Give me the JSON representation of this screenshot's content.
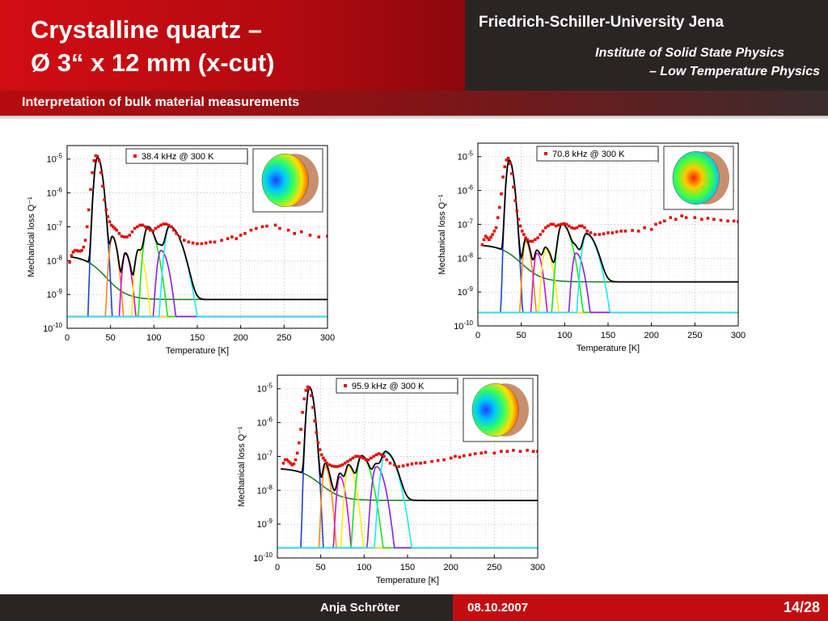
{
  "header": {
    "title_line1": "Crystalline quartz –",
    "title_line2": "Ø 3“ x 12 mm (x-cut)",
    "university": "Friedrich-Schiller-University Jena",
    "institute_line1": "Institute of Solid State Physics",
    "institute_line2": "– Low Temperature Physics"
  },
  "subtitle": "Interpretation of bulk material measurements",
  "footer": {
    "author": "Anja Schröter",
    "date": "08.10.2007",
    "page": "14/28"
  },
  "colors": {
    "measured": "#e01010",
    "fit": "#000000",
    "background": "#1a7a1a",
    "peaks": [
      "#1f3fd6",
      "#ff8a10",
      "#d010d0",
      "#ffee10",
      "#20e020",
      "#8a20e0",
      "#20e8f0"
    ],
    "baseline": "#ff30ff"
  },
  "chart_data": [
    {
      "type": "scatter",
      "legend": "38.4 kHz @ 300 K",
      "xlabel": "Temperature [K]",
      "ylabel": "Mechanical loss Q⁻¹",
      "xlim": [
        0,
        300
      ],
      "ylim_log10": [
        -10,
        -4.6
      ],
      "xticks": [
        0,
        50,
        100,
        150,
        200,
        250,
        300
      ],
      "yticks": [
        -10,
        -9,
        -8,
        -7,
        -6,
        -5
      ],
      "ytick_labels": [
        "10-10",
        "10-9",
        "10-8",
        "10-7",
        "10-6",
        "10-5"
      ],
      "grid": true,
      "legend_position": "top",
      "measured": {
        "x": [
          3,
          5,
          7,
          9,
          11,
          13,
          15,
          17,
          19,
          21,
          23,
          25,
          27,
          29,
          31,
          33,
          35,
          37,
          39,
          41,
          43,
          45,
          47,
          49,
          51,
          53,
          55,
          57,
          60,
          63,
          66,
          69,
          72,
          75,
          78,
          81,
          84,
          87,
          90,
          93,
          96,
          99,
          102,
          105,
          108,
          111,
          114,
          117,
          120,
          123,
          126,
          130,
          135,
          140,
          145,
          150,
          155,
          160,
          165,
          170,
          178,
          185,
          190,
          195,
          200,
          205,
          212,
          218,
          225,
          230,
          240,
          245,
          255,
          262,
          270,
          280,
          290,
          300
        ],
        "y": [
          -8.05,
          -7.85,
          -7.75,
          -7.7,
          -7.7,
          -7.72,
          -7.72,
          -7.7,
          -7.6,
          -7.4,
          -7.0,
          -6.5,
          -5.9,
          -5.4,
          -5.05,
          -4.9,
          -4.92,
          -5.05,
          -5.4,
          -5.8,
          -6.2,
          -6.5,
          -6.7,
          -6.85,
          -6.95,
          -7.0,
          -7.05,
          -7.1,
          -7.2,
          -7.28,
          -7.3,
          -7.3,
          -7.25,
          -7.15,
          -7.05,
          -7.0,
          -6.95,
          -6.95,
          -7.0,
          -7.05,
          -7.1,
          -7.12,
          -7.05,
          -7.0,
          -6.95,
          -6.92,
          -6.92,
          -6.95,
          -7.0,
          -7.1,
          -7.2,
          -7.3,
          -7.4,
          -7.45,
          -7.48,
          -7.5,
          -7.5,
          -7.48,
          -7.45,
          -7.45,
          -7.4,
          -7.35,
          -7.3,
          -7.35,
          -7.25,
          -7.2,
          -7.1,
          -7.05,
          -7.0,
          -6.98,
          -6.95,
          -7.05,
          -7.1,
          -7.2,
          -7.15,
          -7.25,
          -7.3,
          -7.28
        ]
      },
      "background": {
        "amp": -7.85,
        "x0": 20,
        "drop": 1.3
      },
      "peaks": [
        {
          "center": 35,
          "amp": -4.95,
          "wl": 9,
          "wr": 14
        },
        {
          "center": 52,
          "amp": -7.3,
          "wl": 9,
          "wr": 15
        },
        {
          "center": 67,
          "amp": -7.8,
          "wl": 9,
          "wr": 16
        },
        {
          "center": 82,
          "amp": -7.7,
          "wl": 10,
          "wr": 18
        },
        {
          "center": 93,
          "amp": -7.0,
          "wl": 12,
          "wr": 25
        },
        {
          "center": 108,
          "amp": -7.7,
          "wl": 11,
          "wr": 22
        },
        {
          "center": 118,
          "amp": -7.0,
          "wl": 13,
          "wr": 35
        }
      ],
      "baseline_log10": -9.65
    },
    {
      "type": "scatter",
      "legend": "70.8 kHz @ 300 K",
      "xlabel": "Temperature [K]",
      "ylabel": "Mechanical loss Q⁻¹",
      "xlim": [
        0,
        300
      ],
      "ylim_log10": [
        -10,
        -4.6
      ],
      "xticks": [
        0,
        50,
        100,
        150,
        200,
        250,
        300
      ],
      "yticks": [
        -10,
        -9,
        -8,
        -7,
        -6,
        -5
      ],
      "ytick_labels": [
        "10-10",
        "10-9",
        "10-8",
        "10-7",
        "10-6",
        "10-5"
      ],
      "grid": true,
      "legend_position": "top",
      "measured": {
        "x": [
          5,
          7,
          9,
          11,
          13,
          15,
          17,
          19,
          21,
          23,
          25,
          27,
          29,
          31,
          33,
          35,
          37,
          39,
          41,
          43,
          45,
          47,
          49,
          51,
          53,
          55,
          57,
          60,
          63,
          66,
          69,
          72,
          75,
          78,
          81,
          84,
          87,
          90,
          93,
          96,
          99,
          102,
          105,
          108,
          111,
          114,
          117,
          120,
          123,
          126,
          130,
          135,
          140,
          145,
          150,
          155,
          160,
          165,
          170,
          178,
          185,
          192,
          200,
          205,
          210,
          215,
          222,
          228,
          235,
          240,
          250,
          258,
          265,
          272,
          280,
          288,
          295,
          300
        ],
        "y": [
          -7.6,
          -7.45,
          -7.35,
          -7.4,
          -7.45,
          -7.38,
          -7.3,
          -7.2,
          -7.1,
          -6.8,
          -6.5,
          -6.1,
          -5.6,
          -5.3,
          -5.1,
          -5.05,
          -5.2,
          -5.5,
          -5.9,
          -6.3,
          -6.6,
          -6.85,
          -7.05,
          -7.2,
          -7.3,
          -7.4,
          -7.45,
          -7.5,
          -7.5,
          -7.45,
          -7.4,
          -7.3,
          -7.2,
          -7.1,
          -7.05,
          -7.0,
          -7.0,
          -7.05,
          -7.02,
          -7.0,
          -6.98,
          -7.0,
          -7.05,
          -7.1,
          -7.12,
          -7.1,
          -7.05,
          -7.05,
          -7.1,
          -7.2,
          -7.25,
          -7.3,
          -7.3,
          -7.28,
          -7.25,
          -7.25,
          -7.22,
          -7.2,
          -7.2,
          -7.18,
          -7.2,
          -7.1,
          -7.15,
          -7.0,
          -6.95,
          -6.9,
          -6.8,
          -6.85,
          -6.75,
          -6.8,
          -6.8,
          -6.85,
          -6.82,
          -6.85,
          -6.88,
          -6.9,
          -6.9,
          -6.92
        ]
      },
      "background": {
        "amp": -7.6,
        "x0": 25,
        "drop": 1.1
      },
      "peaks": [
        {
          "center": 36,
          "amp": -5.1,
          "wl": 8,
          "wr": 13
        },
        {
          "center": 55,
          "amp": -7.5,
          "wl": 8,
          "wr": 15
        },
        {
          "center": 68,
          "amp": -7.85,
          "wl": 9,
          "wr": 16
        },
        {
          "center": 78,
          "amp": -7.75,
          "wl": 10,
          "wr": 20
        },
        {
          "center": 97,
          "amp": -7.0,
          "wl": 13,
          "wr": 27
        },
        {
          "center": 113,
          "amp": -7.85,
          "wl": 11,
          "wr": 22
        },
        {
          "center": 125,
          "amp": -7.3,
          "wl": 13,
          "wr": 32
        }
      ],
      "baseline_log10": -9.6
    },
    {
      "type": "scatter",
      "legend": "95.9 kHz @ 300 K",
      "xlabel": "Temperature [K]",
      "ylabel": "Mechanical loss Q⁻¹",
      "xlim": [
        0,
        300
      ],
      "ylim_log10": [
        -10,
        -4.6
      ],
      "xticks": [
        0,
        50,
        100,
        150,
        200,
        250,
        300
      ],
      "yticks": [
        -10,
        -9,
        -8,
        -7,
        -6,
        -5
      ],
      "ytick_labels": [
        "10-10",
        "10-9",
        "10-8",
        "10-7",
        "10-6",
        "10-5"
      ],
      "grid": true,
      "legend_position": "top",
      "measured": {
        "x": [
          7,
          9,
          11,
          13,
          15,
          17,
          19,
          21,
          23,
          25,
          27,
          29,
          31,
          33,
          35,
          37,
          39,
          41,
          43,
          45,
          47,
          49,
          51,
          53,
          55,
          57,
          60,
          63,
          66,
          69,
          72,
          75,
          78,
          81,
          84,
          87,
          90,
          93,
          96,
          99,
          102,
          105,
          108,
          111,
          114,
          117,
          120,
          123,
          126,
          130,
          135,
          140,
          145,
          150,
          155,
          160,
          165,
          170,
          178,
          185,
          192,
          200,
          205,
          210,
          215,
          222,
          228,
          235,
          240,
          250,
          258,
          265,
          272,
          280,
          288,
          295,
          300
        ],
        "y": [
          -7.2,
          -7.1,
          -7.1,
          -7.15,
          -7.2,
          -7.25,
          -7.22,
          -7.1,
          -6.9,
          -6.6,
          -6.2,
          -5.7,
          -5.3,
          -5.05,
          -4.95,
          -5.0,
          -5.2,
          -5.55,
          -5.95,
          -6.3,
          -6.6,
          -6.8,
          -6.95,
          -7.05,
          -7.12,
          -7.2,
          -7.25,
          -7.28,
          -7.3,
          -7.3,
          -7.28,
          -7.25,
          -7.2,
          -7.15,
          -7.1,
          -7.05,
          -7.0,
          -7.0,
          -7.02,
          -7.05,
          -7.1,
          -7.1,
          -7.05,
          -7.0,
          -6.95,
          -6.92,
          -6.95,
          -7.0,
          -7.1,
          -7.2,
          -7.25,
          -7.3,
          -7.28,
          -7.25,
          -7.22,
          -7.2,
          -7.2,
          -7.18,
          -7.15,
          -7.12,
          -7.1,
          -7.05,
          -7.0,
          -7.02,
          -6.98,
          -6.95,
          -6.92,
          -6.9,
          -6.88,
          -6.9,
          -6.85,
          -6.85,
          -6.82,
          -6.85,
          -6.82,
          -6.85,
          -6.85
        ]
      },
      "background": {
        "amp": -7.35,
        "x0": 25,
        "drop": 0.95
      },
      "peaks": [
        {
          "center": 37,
          "amp": -4.95,
          "wl": 8,
          "wr": 13
        },
        {
          "center": 55,
          "amp": -7.3,
          "wl": 8,
          "wr": 15
        },
        {
          "center": 72,
          "amp": -7.6,
          "wl": 9,
          "wr": 16
        },
        {
          "center": 82,
          "amp": -7.3,
          "wl": 10,
          "wr": 20
        },
        {
          "center": 97,
          "amp": -7.0,
          "wl": 13,
          "wr": 27
        },
        {
          "center": 114,
          "amp": -7.3,
          "wl": 12,
          "wr": 24
        },
        {
          "center": 125,
          "amp": -6.9,
          "wl": 14,
          "wr": 32
        }
      ],
      "baseline_log10": -9.7
    }
  ]
}
